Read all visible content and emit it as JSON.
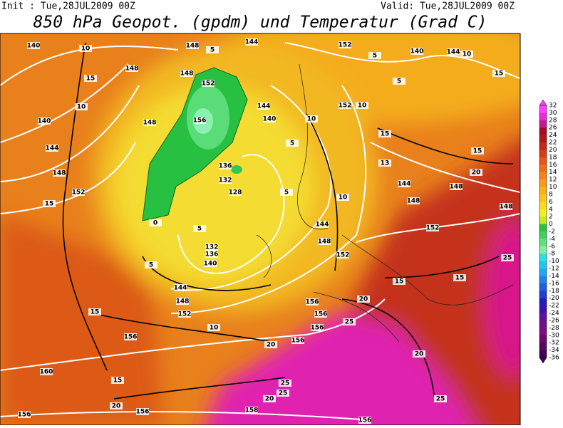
{
  "header": {
    "init": "Init : Tue,28JUL2009 00Z",
    "valid": "Valid: Tue,28JUL2009 00Z",
    "title": "850 hPa Geopot. (gpdm) und Temperatur (Grad C)"
  },
  "colorbar": {
    "labels": [
      "32",
      "30",
      "28",
      "26",
      "24",
      "22",
      "20",
      "18",
      "16",
      "14",
      "12",
      "10",
      "8",
      "6",
      "4",
      "2",
      "0",
      "-2",
      "-4",
      "-6",
      "-8",
      "-10",
      "-12",
      "-14",
      "-16",
      "-18",
      "-20",
      "-22",
      "-24",
      "-26",
      "-28",
      "-30",
      "-32",
      "-34",
      "-36"
    ]
  },
  "contour_labels": {
    "geopotential": [
      "140",
      "148",
      "144",
      "152",
      "140",
      "144",
      "148",
      "148",
      "152",
      "156",
      "148",
      "140",
      "144",
      "148",
      "152",
      "136",
      "132",
      "128",
      "132",
      "136",
      "140",
      "144",
      "148",
      "152",
      "156",
      "160",
      "156",
      "156",
      "158",
      "156",
      "144",
      "140",
      "152",
      "144",
      "148",
      "148",
      "152",
      "152",
      "144",
      "148",
      "156",
      "156",
      "156",
      "156",
      "148"
    ],
    "temperature": [
      "10",
      "15",
      "10",
      "15",
      "5",
      "15",
      "10",
      "20",
      "15",
      "20",
      "25",
      "25",
      "20",
      "25",
      "25",
      "20",
      "15",
      "15",
      "25",
      "20",
      "15",
      "15",
      "10",
      "10",
      "15",
      "10",
      "5",
      "5",
      "5",
      "13",
      "10",
      "5",
      "5",
      "0",
      "5",
      "20"
    ]
  }
}
